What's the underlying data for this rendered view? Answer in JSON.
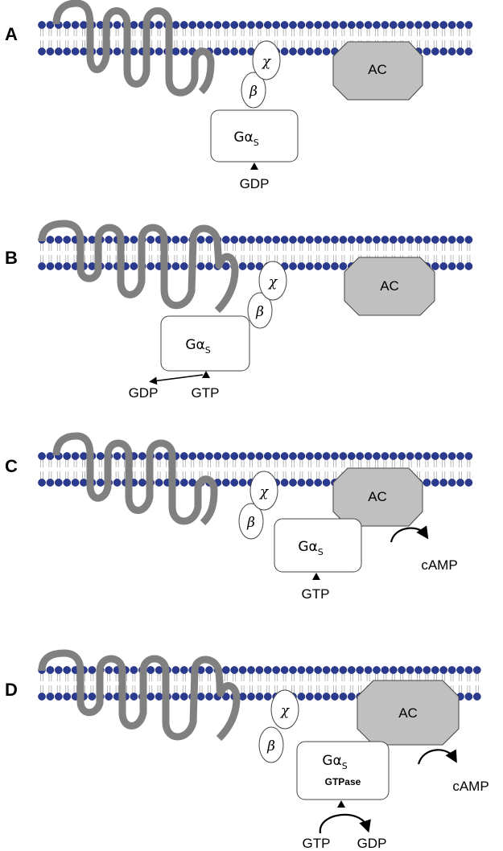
{
  "panels": [
    {
      "label": "A",
      "gbeta": "β",
      "ggamma": "χ",
      "galpha": "Gα",
      "galpha_sub": "S",
      "ac": "AC",
      "nucleotides": [
        "GDP"
      ]
    },
    {
      "label": "B",
      "gbeta": "β",
      "ggamma": "χ",
      "galpha": "Gα",
      "galpha_sub": "S",
      "ac": "AC",
      "nucleotides": [
        "GDP",
        "GTP"
      ]
    },
    {
      "label": "C",
      "gbeta": "β",
      "ggamma": "χ",
      "galpha": "Gα",
      "galpha_sub": "S",
      "ac": "AC",
      "nucleotides": [
        "GTP"
      ],
      "product": "cAMP"
    },
    {
      "label": "D",
      "gbeta": "β",
      "ggamma": "χ",
      "galpha": "Gα",
      "galpha_sub": "S",
      "galpha_activity": "GTPase",
      "ac": "AC",
      "nucleotides": [
        "GTP",
        "GDP"
      ],
      "product": "cAMP"
    }
  ],
  "colors": {
    "lipid_head": "#2a3a8f",
    "receptor": "#808080",
    "adenylyl_cyclase": "#c0c0c0"
  }
}
